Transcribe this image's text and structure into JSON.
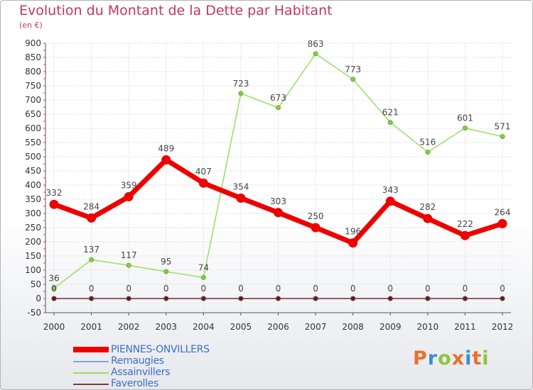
{
  "header": {
    "title": "Evolution du Montant de la Dette par Habitant",
    "subtitle": "(en €)"
  },
  "colors": {
    "title": "#c0385e",
    "legend_text": "#3a6fc8",
    "axis": "#555555",
    "grid": "#cccccc",
    "tick_text": "#333333",
    "label_text": "#444444"
  },
  "chart_data": {
    "type": "line",
    "title": "Evolution du Montant de la Dette par Habitant",
    "ylabel": "(en €)",
    "xlabel": "",
    "ylim": [
      -50,
      900
    ],
    "yticks": [
      -50,
      0,
      50,
      100,
      150,
      200,
      250,
      300,
      350,
      400,
      450,
      500,
      550,
      600,
      650,
      700,
      750,
      800,
      850,
      900
    ],
    "x": [
      "2000",
      "2001",
      "2002",
      "2003",
      "2004",
      "2005",
      "2006",
      "2007",
      "2008",
      "2009",
      "2010",
      "2011",
      "2012"
    ],
    "series": [
      {
        "name": "PIENNES-ONVILLERS",
        "color": "#ee0000",
        "values": [
          332,
          284,
          359,
          489,
          407,
          354,
          303,
          250,
          196,
          343,
          282,
          222,
          264
        ]
      },
      {
        "name": "Remaugies",
        "color": "#7ba7d6",
        "values": [
          0,
          0,
          0,
          0,
          0,
          0,
          0,
          0,
          0,
          0,
          0,
          0,
          0
        ]
      },
      {
        "name": "Assainvillers",
        "color": "#99dd66",
        "values": [
          36,
          137,
          117,
          95,
          74,
          723,
          673,
          863,
          773,
          621,
          516,
          601,
          571
        ]
      },
      {
        "name": "Faverolles",
        "color": "#7a3b3b",
        "values": [
          0,
          0,
          0,
          0,
          0,
          0,
          0,
          0,
          0,
          0,
          0,
          0,
          0
        ]
      }
    ],
    "legend": "bottom-left"
  },
  "logo": {
    "letters": [
      "P",
      "r",
      "o",
      "x",
      "i",
      "t",
      "i"
    ],
    "colors": [
      "#e8702a",
      "#3a8fd1",
      "#8cc63f",
      "#e8702a",
      "#3a8fd1",
      "#e8702a",
      "#8cc63f"
    ]
  }
}
